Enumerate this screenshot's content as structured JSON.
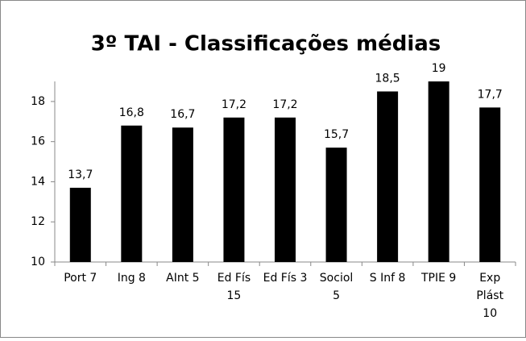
{
  "chart_data": {
    "type": "bar",
    "title": "3º TAI - Classificações médias",
    "categories": [
      "Port 7",
      "Ing 8",
      "AInt 5",
      "Ed Fís\n15",
      "Ed Fís 3",
      "Sociol\n5",
      "S Inf 8",
      "TPIE 9",
      "Exp\nPlást\n10"
    ],
    "values": [
      13.7,
      16.8,
      16.7,
      17.2,
      17.2,
      15.7,
      18.5,
      19,
      17.7
    ],
    "value_labels": [
      "13,7",
      "16,8",
      "16,7",
      "17,2",
      "17,2",
      "15,7",
      "18,5",
      "19",
      "17,7"
    ],
    "color": "#000000",
    "ylim": [
      10,
      19
    ],
    "yticks": [
      10,
      12,
      14,
      16,
      18
    ],
    "grid": false
  }
}
